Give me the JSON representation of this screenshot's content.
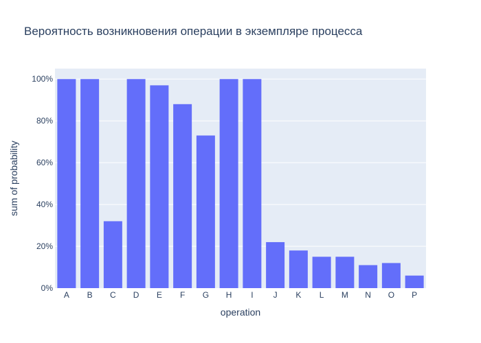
{
  "chart_data": {
    "type": "bar",
    "title": "Вероятность возникновения операции в экземпляре процесса",
    "xlabel": "operation",
    "ylabel": "sum of probability",
    "categories": [
      "A",
      "B",
      "C",
      "D",
      "E",
      "F",
      "G",
      "H",
      "I",
      "J",
      "K",
      "L",
      "M",
      "N",
      "O",
      "P"
    ],
    "values": [
      1.0,
      1.0,
      0.32,
      1.0,
      0.97,
      0.88,
      0.73,
      1.0,
      1.0,
      0.22,
      0.18,
      0.15,
      0.15,
      0.11,
      0.12,
      0.06
    ],
    "ylim": [
      0,
      1.05
    ],
    "y_ticks": [
      0,
      0.2,
      0.4,
      0.6,
      0.8,
      1.0
    ],
    "y_tick_labels": [
      "0%",
      "20%",
      "40%",
      "60%",
      "80%",
      "100%"
    ],
    "grid": true,
    "colors": {
      "bar": "#636efa",
      "plot_background": "#e5ecf6",
      "grid": "#ffffff",
      "text": "#2a3f5f"
    }
  }
}
